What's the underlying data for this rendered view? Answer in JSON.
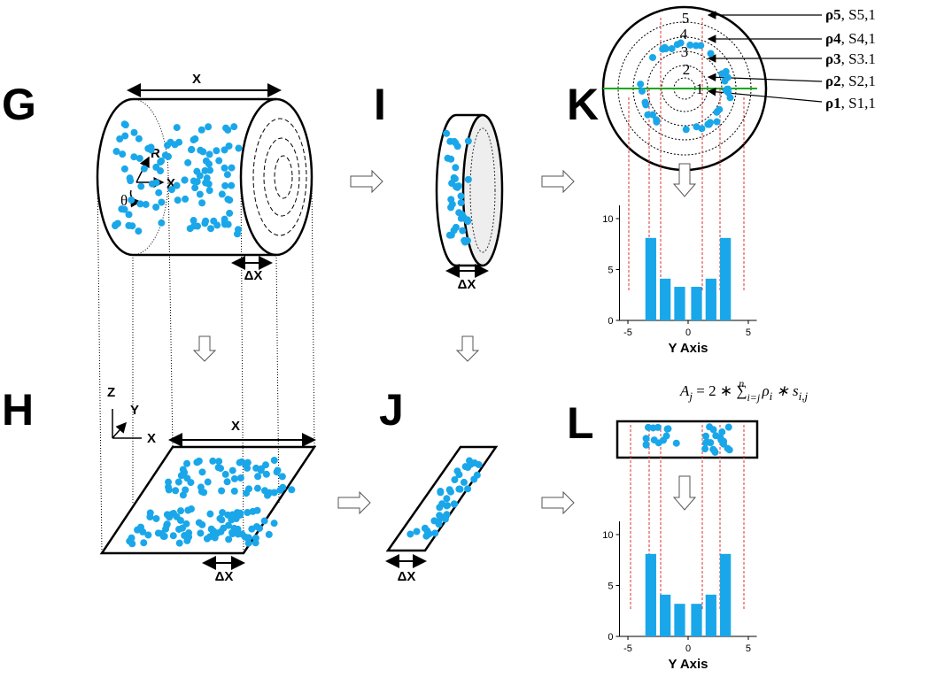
{
  "panels": {
    "g": "G",
    "h": "H",
    "i": "I",
    "j": "J",
    "k": "K",
    "l": "L"
  },
  "g": {
    "length": "X",
    "slice": "ΔX",
    "radius": "R",
    "angle": "θ",
    "axis": "X"
  },
  "h": {
    "z": "Z",
    "y": "Y",
    "x": "X",
    "length": "X",
    "slice": "ΔX"
  },
  "i": {
    "slice": "ΔX"
  },
  "j": {
    "slice": "ΔX"
  },
  "k": {
    "rings": [
      "1",
      "2",
      "3",
      "4",
      "5"
    ],
    "annotations": [
      {
        "rho": "ρ5",
        "s": ", S5,1"
      },
      {
        "rho": "ρ4",
        "s": ", S4,1"
      },
      {
        "rho": "ρ3",
        "s": ", S3.1"
      },
      {
        "rho": "ρ2",
        "s": ", S2,1"
      },
      {
        "rho": "ρ1",
        "s": ", S1,1"
      }
    ]
  },
  "formula": {
    "a": "A",
    "a_sub": "j",
    "mid": " = 2 ∗ ∑",
    "sum_sub": "i=j",
    "sum_sup": "n",
    "rho": " ρ",
    "rho_sub": "i",
    "s": " ∗ s",
    "s_sub": "i,j"
  },
  "chart_data": [
    {
      "type": "bar",
      "xlabel": "Y Axis",
      "x": [
        -3.1,
        -1.9,
        -0.7,
        0.7,
        1.9,
        3.1
      ],
      "values": [
        8.1,
        4.1,
        3.3,
        3.3,
        4.1,
        8.1
      ],
      "bar_width": 0.9,
      "color": "#1aa7ea",
      "xlim": [
        -5.7,
        5.7
      ],
      "ylim": [
        0,
        11.3
      ],
      "xticks": [
        -5,
        0,
        5
      ],
      "yticks": [
        0,
        5,
        10
      ]
    },
    {
      "type": "bar",
      "xlabel": "Y Axis",
      "x": [
        -3.1,
        -1.9,
        -0.7,
        0.7,
        1.9,
        3.1
      ],
      "values": [
        8.1,
        4.1,
        3.2,
        3.2,
        4.1,
        8.1
      ],
      "bar_width": 0.9,
      "color": "#1aa7ea",
      "xlim": [
        -5.7,
        5.7
      ],
      "ylim": [
        0,
        11.3
      ],
      "xticks": [
        -5,
        0,
        5
      ],
      "yticks": [
        0,
        5,
        10
      ]
    }
  ]
}
